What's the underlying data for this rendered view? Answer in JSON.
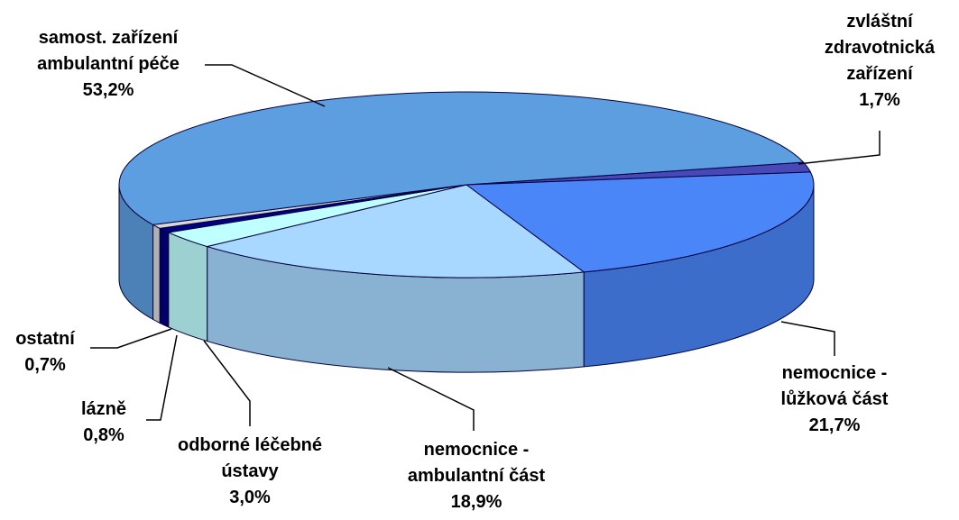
{
  "chart_data": {
    "type": "pie",
    "categories": [
      "zvláštní zdravotnická zařízení",
      "nemocnice - lůžková část",
      "nemocnice - ambulantní část",
      "odborné léčebné ústavy",
      "lázně",
      "ostatní",
      "samost. zařízení ambulantní péče"
    ],
    "values": [
      1.7,
      21.7,
      18.9,
      3.0,
      0.8,
      0.7,
      53.2
    ],
    "value_labels": [
      "1,7%",
      "21,7%",
      "18,9%",
      "3,0%",
      "0,8%",
      "0,7%",
      "53,2%"
    ],
    "colors": [
      "#4848b8",
      "#4a86f8",
      "#a8d8ff",
      "#c0ffff",
      "#000080",
      "#d8d8d8",
      "#5c9ee0"
    ]
  }
}
